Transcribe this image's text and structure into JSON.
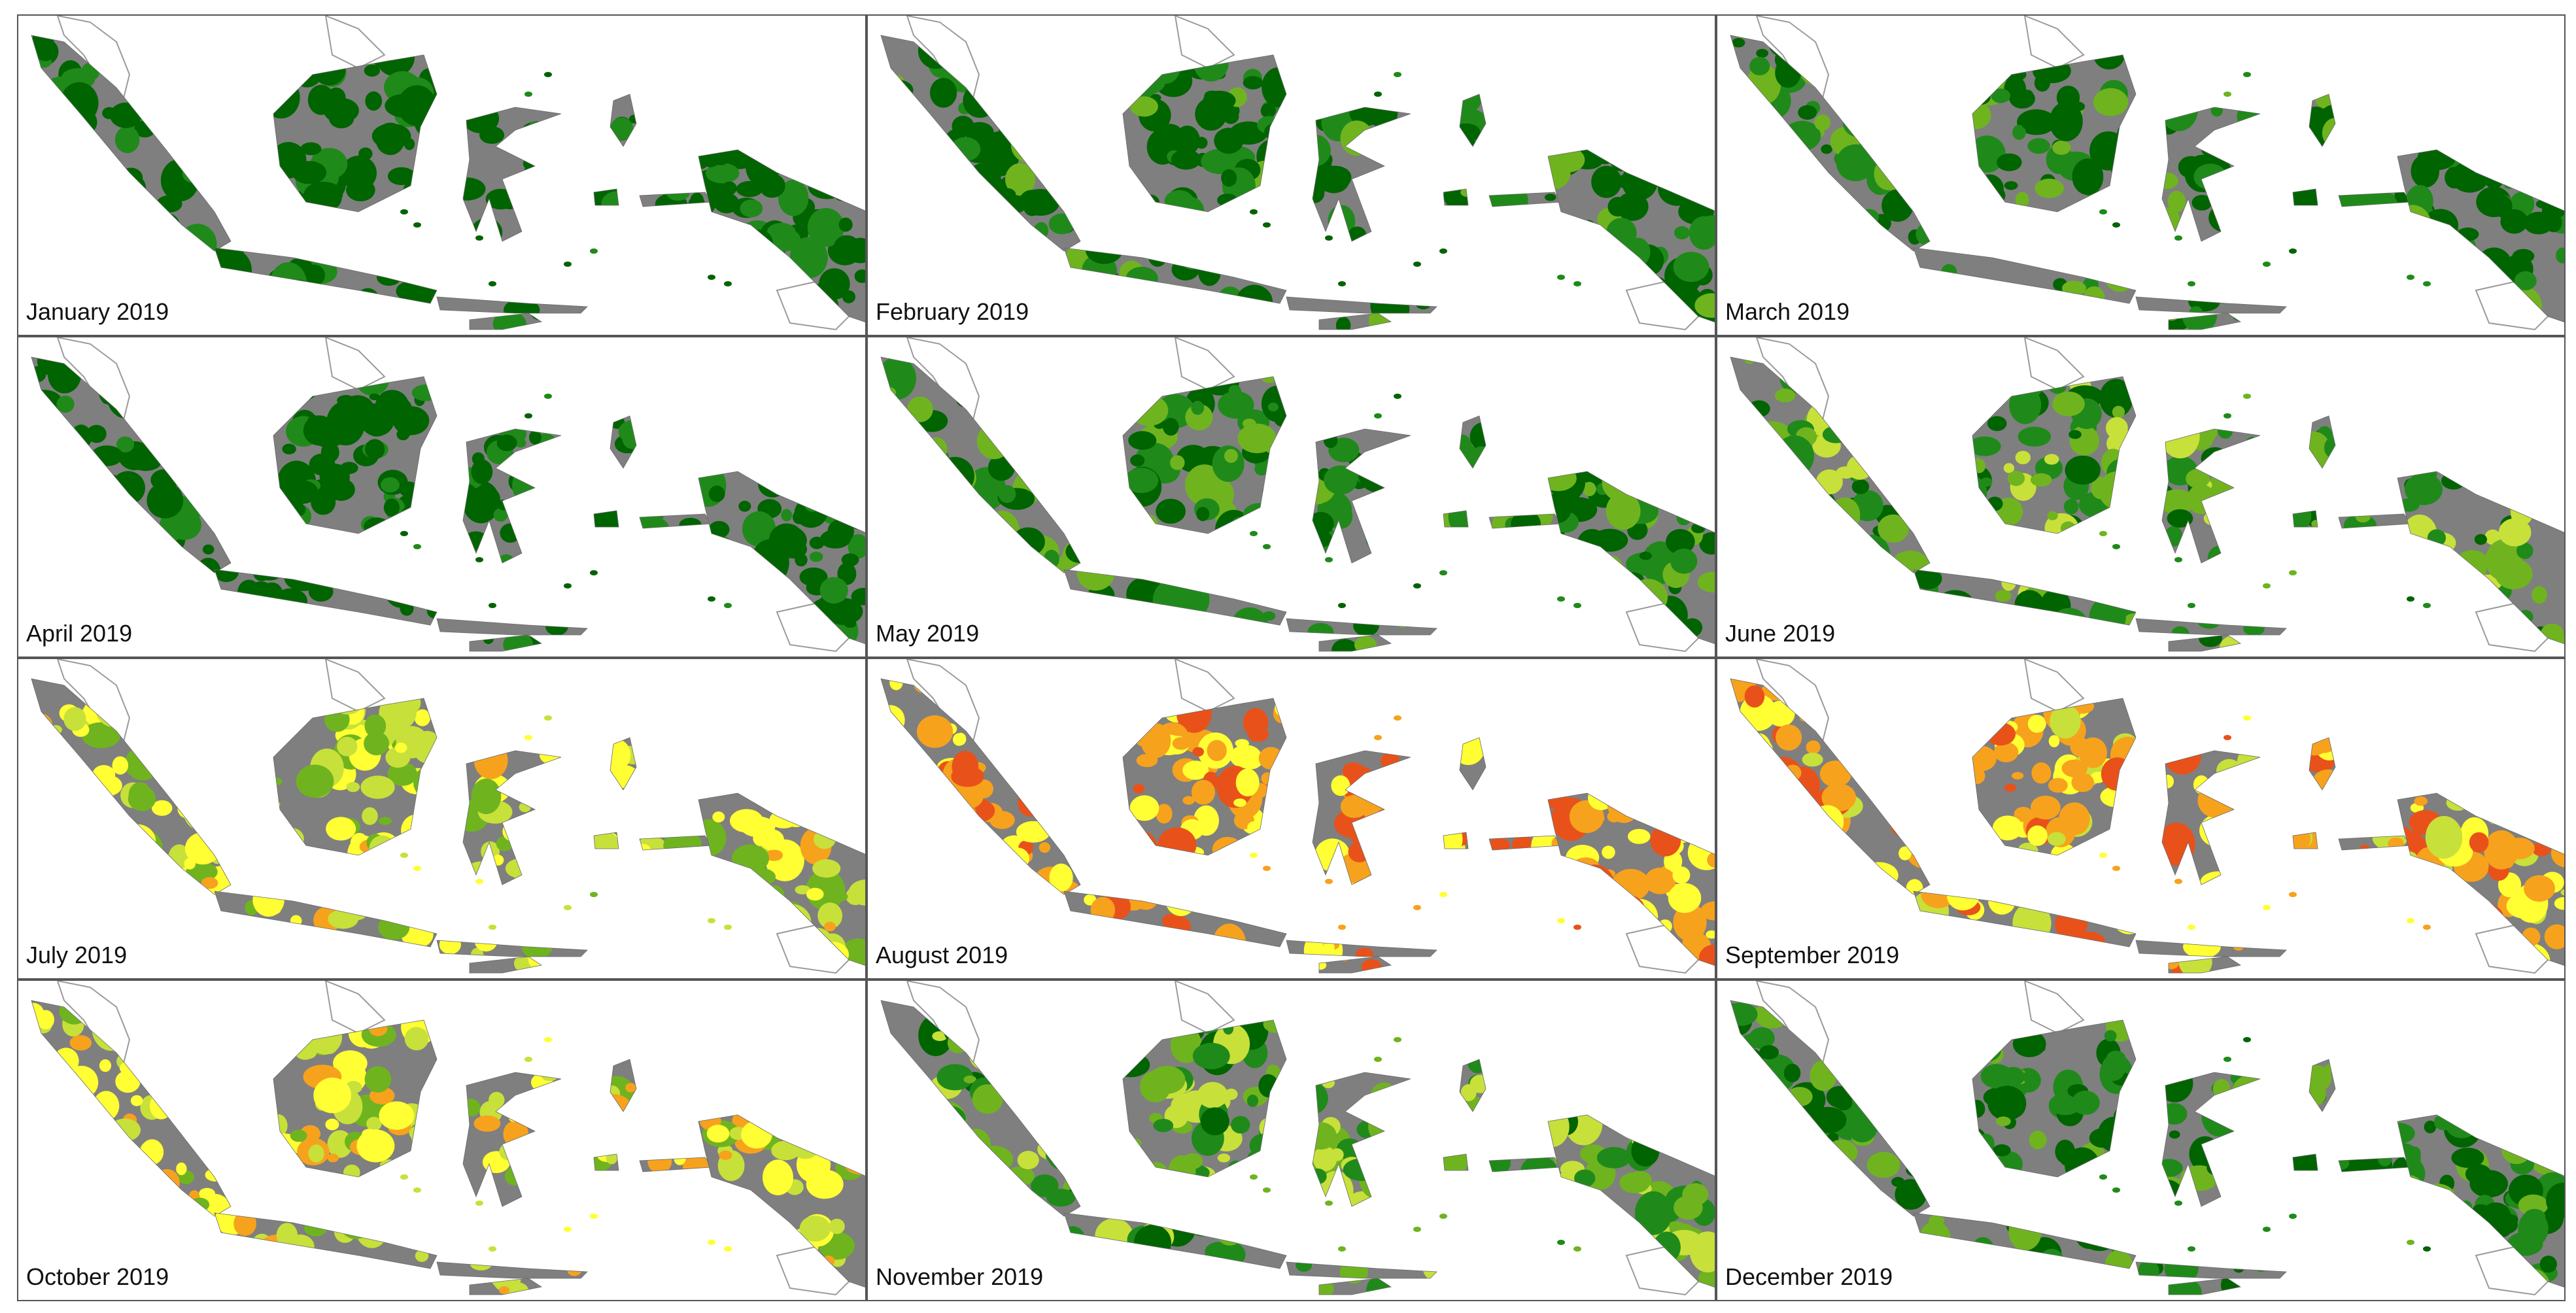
{
  "figure": {
    "panels": [
      {
        "label": "January 2019",
        "dryness": 0.05
      },
      {
        "label": "February 2019",
        "dryness": 0.15
      },
      {
        "label": "March 2019",
        "dryness": 0.18
      },
      {
        "label": "April 2019",
        "dryness": 0.08
      },
      {
        "label": "May 2019",
        "dryness": 0.22
      },
      {
        "label": "June 2019",
        "dryness": 0.32
      },
      {
        "label": "July 2019",
        "dryness": 0.62
      },
      {
        "label": "August 2019",
        "dryness": 0.92
      },
      {
        "label": "September 2019",
        "dryness": 0.85
      },
      {
        "label": "October 2019",
        "dryness": 0.68
      },
      {
        "label": "November 2019",
        "dryness": 0.38
      },
      {
        "label": "December 2019",
        "dryness": 0.2
      }
    ],
    "palette": {
      "nodata": "#7f7f7f",
      "class_1": "#006400",
      "class_2": "#1f8a1a",
      "class_3": "#6fb41f",
      "class_4": "#c8e03a",
      "class_5": "#ffff33",
      "class_6": "#f7a21d",
      "class_7": "#e8521a",
      "outline": "#9a9a9a"
    }
  }
}
